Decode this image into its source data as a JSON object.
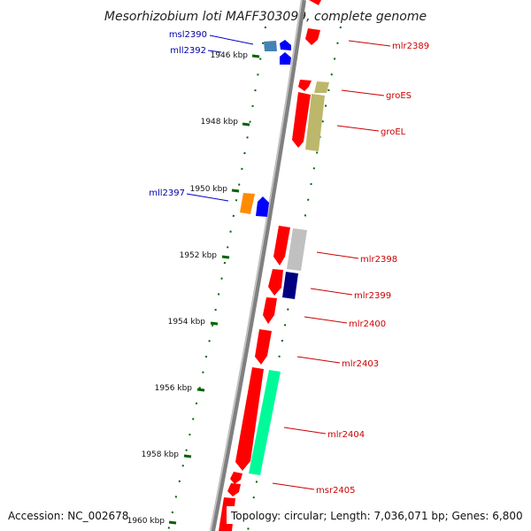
{
  "title": "Mesorhizobium loti MAFF303099, complete genome",
  "accession": "Accession: NC_002678",
  "topology": "Topology: circular; Length: 7,036,071 bp; Genes: 6,800",
  "ticks": [
    "1946 kbp",
    "1948 kbp",
    "1950 kbp",
    "1952 kbp",
    "1954 kbp",
    "1956 kbp",
    "1958 kbp",
    "1960 kbp"
  ],
  "genes_reverse": [
    "msl2390",
    "mll2392",
    "mll2397"
  ],
  "genes_forward": [
    "mlr2389",
    "groES",
    "groEL",
    "mlr2398",
    "mlr2399",
    "mlr2400",
    "mlr2403",
    "mlr2404",
    "msr2405"
  ],
  "colors": {
    "red": "#ff0000",
    "blue": "#0000ff",
    "steel": "#4682b4",
    "orange": "#ff8c00",
    "khaki": "#bdb76b",
    "silver": "#c0c0c0",
    "navy": "#000080",
    "green": "#00fa9a",
    "backbone": "#808080",
    "tick": "#006400"
  }
}
